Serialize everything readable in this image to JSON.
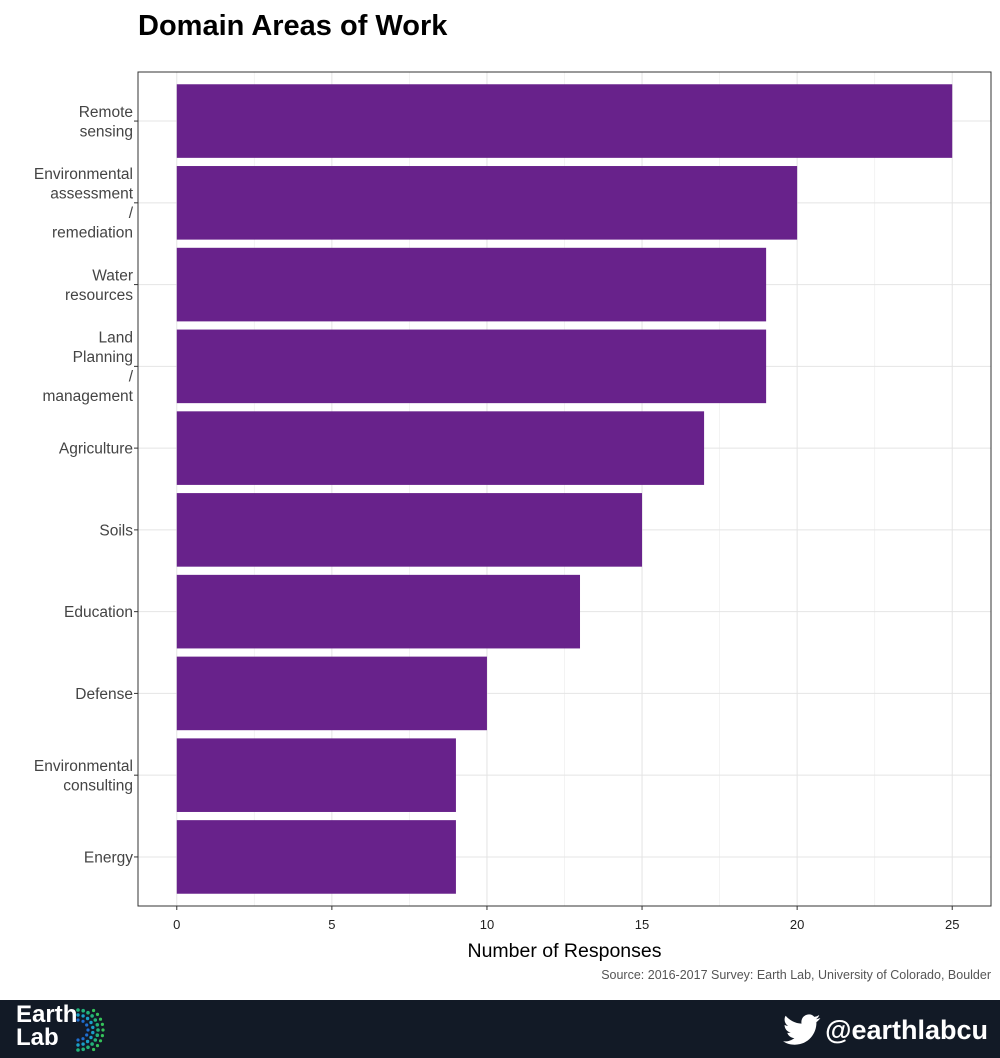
{
  "chart_data": {
    "type": "bar",
    "orientation": "horizontal",
    "title": "Domain Areas of Work",
    "xlabel": "Number of Responses",
    "ylabel": "",
    "categories": [
      "Remote sensing",
      "Environmental assessment / remediation",
      "Water resources",
      "Land Planning / management",
      "Agriculture",
      "Soils",
      "Education",
      "Defense",
      "Environmental consulting",
      "Energy"
    ],
    "category_lines": [
      [
        "Remote",
        "sensing"
      ],
      [
        "Environmental",
        "assessment",
        "/",
        "remediation"
      ],
      [
        "Water",
        "resources"
      ],
      [
        "Land",
        "Planning",
        "/",
        "management"
      ],
      [
        "Agriculture"
      ],
      [
        "Soils"
      ],
      [
        "Education"
      ],
      [
        "Defense"
      ],
      [
        "Environmental",
        "consulting"
      ],
      [
        "Energy"
      ]
    ],
    "values": [
      25,
      20,
      19,
      19,
      17,
      15,
      13,
      10,
      9,
      9
    ],
    "xlim": [
      -1.25,
      26.25
    ],
    "xticks": [
      0,
      5,
      10,
      15,
      20,
      25
    ],
    "grid": true,
    "bar_color": "#68228b"
  },
  "source_note": "Source: 2016-2017 Survey: Earth Lab, University of Colorado, Boulder",
  "footer": {
    "logo_text": "Earth\nLab",
    "twitter_handle": "@earthlabcu"
  }
}
